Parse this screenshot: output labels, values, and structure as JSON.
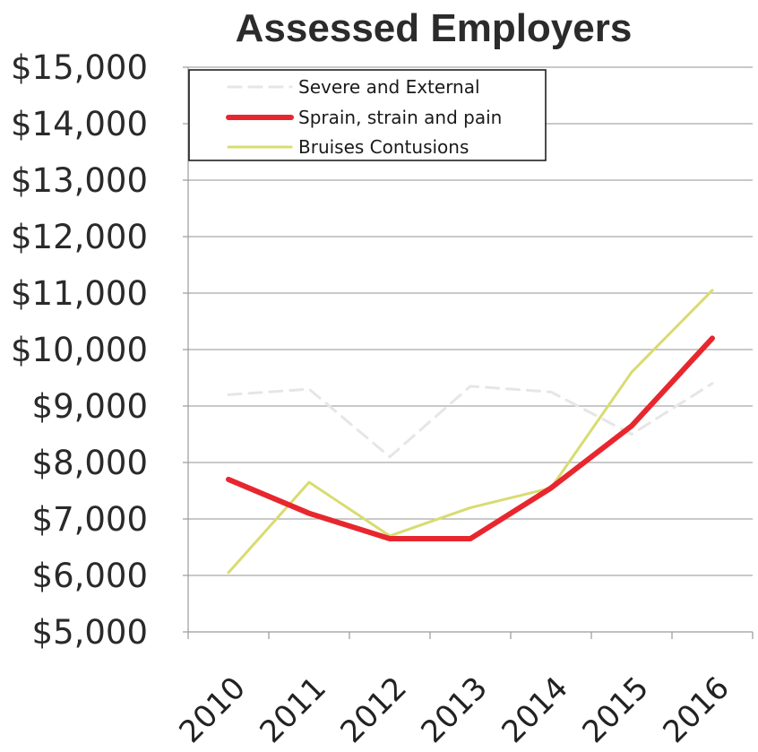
{
  "chart_data": {
    "type": "line",
    "title": "Assessed Employers",
    "xlabel": "",
    "ylabel": "",
    "categories": [
      "2010",
      "2011",
      "2012",
      "2013",
      "2014",
      "2015",
      "2016"
    ],
    "y_ticks": [
      "$5,000",
      "$6,000",
      "$7,000",
      "$8,000",
      "$9,000",
      "$10,000",
      "$11,000",
      "$12,000",
      "$13,000",
      "$14,000",
      "$15,000"
    ],
    "ylim": [
      5000,
      15000
    ],
    "grid": true,
    "legend_position": "top-left",
    "series": [
      {
        "name": "Severe and External",
        "color": "#e6e6e6",
        "values": [
          9200,
          9300,
          8100,
          9350,
          9250,
          8500,
          9400
        ]
      },
      {
        "name": "Sprain, strain and pain",
        "color": "#e8262e",
        "values": [
          7700,
          7100,
          6650,
          6650,
          7550,
          8650,
          10200
        ]
      },
      {
        "name": "Bruises Contusions",
        "color": "#d8dc70",
        "values": [
          6050,
          7650,
          6700,
          7200,
          7550,
          9600,
          11050
        ]
      }
    ]
  }
}
